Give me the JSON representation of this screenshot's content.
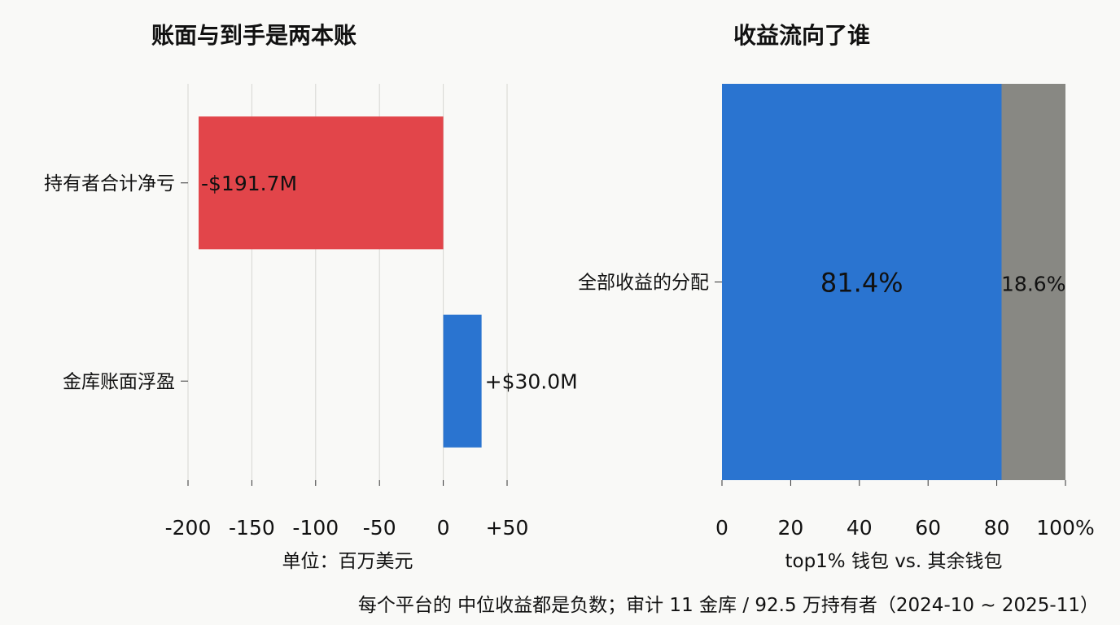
{
  "caption": "每个平台的 中位收益都是负数；审计 11 金库 / 92.5 万持有者（2024-10 ~ 2025-11）",
  "chart_data": [
    {
      "type": "bar",
      "orientation": "horizontal",
      "title": "账面与到手是两本账",
      "xlabel": "单位：百万美元",
      "categories": [
        "持有者合计净亏",
        "金库账面浮盈"
      ],
      "values": [
        -191.7,
        30.0
      ],
      "value_labels": [
        "-$191.7M",
        "+$30.0M"
      ],
      "colors": [
        "#e2454a",
        "#2a74d0"
      ],
      "xlim": [
        -200,
        50
      ],
      "xticks": [
        -200,
        -150,
        -100,
        -50,
        0,
        50
      ],
      "xtick_labels": [
        "-200",
        "-150",
        "-100",
        "-50",
        "0",
        "+50"
      ],
      "grid": true
    },
    {
      "type": "bar",
      "orientation": "horizontal",
      "stacked": true,
      "title": "收益流向了谁",
      "xlabel": "top1% 钱包 vs. 其余钱包",
      "categories": [
        "全部收益的分配"
      ],
      "series": [
        {
          "values": [
            81.4
          ],
          "label": "81.4%",
          "color": "#2a74d0"
        },
        {
          "values": [
            18.6
          ],
          "label": "18.6%",
          "color": "#888883"
        }
      ],
      "xlim": [
        0,
        100
      ],
      "xticks": [
        0,
        20,
        40,
        60,
        80,
        100
      ],
      "xtick_labels": [
        "0",
        "20",
        "40",
        "60",
        "80",
        "100%"
      ],
      "grid": false
    }
  ]
}
